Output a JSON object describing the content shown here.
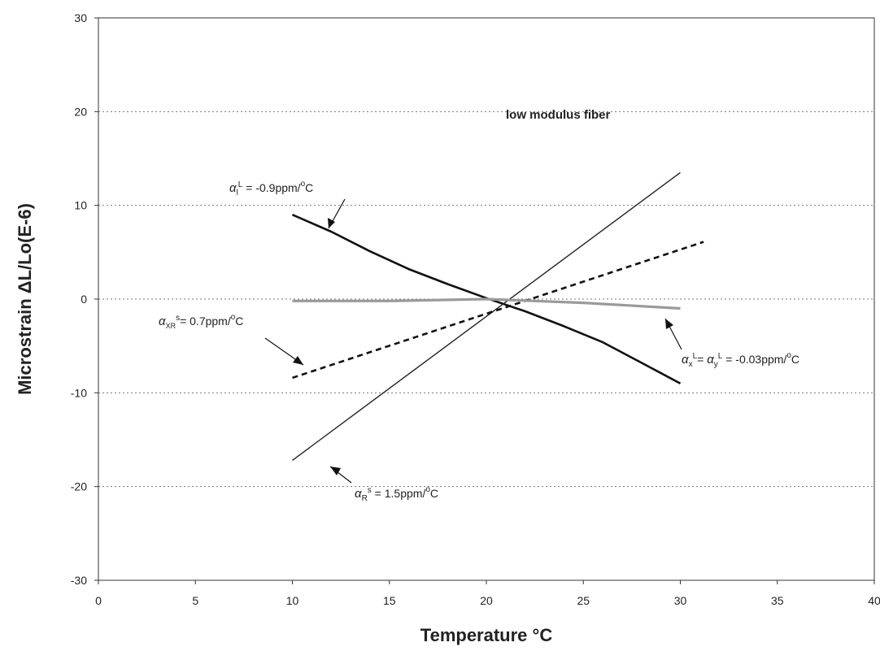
{
  "chart_data": {
    "type": "line",
    "xlabel": "Temperature °C",
    "ylabel": "Microstrain ΔL/Lo(E-6)",
    "xlim": [
      0,
      40
    ],
    "ylim": [
      -30,
      30
    ],
    "x_ticks": [
      "0",
      "5",
      "10",
      "15",
      "20",
      "25",
      "30",
      "35",
      "40"
    ],
    "y_ticks": [
      "-30",
      "-20",
      "-10",
      "0",
      "10",
      "20",
      "30"
    ],
    "grid": "dotted horizontal",
    "label": "low modulus fiber",
    "series": [
      {
        "x": [
          10,
          12,
          14,
          16,
          18,
          20,
          22,
          24,
          26,
          28,
          30
        ],
        "y": [
          9,
          7.2,
          5.1,
          3.2,
          1.6,
          0.1,
          -1.3,
          -2.9,
          -4.6,
          -6.8,
          -9
        ],
        "color": "#111111",
        "style": "solid-thick"
      },
      {
        "x": [
          10,
          30
        ],
        "y": [
          -17.2,
          13.5
        ],
        "color": "#222222",
        "style": "solid-thin"
      },
      {
        "x": [
          10,
          31.2
        ],
        "y": [
          -8.4,
          6.1
        ],
        "color": "#111111",
        "style": "dashed"
      },
      {
        "x": [
          10,
          15,
          20,
          25,
          30
        ],
        "y": [
          -0.2,
          -0.2,
          0,
          -0.4,
          -1
        ],
        "color": "#9a9a9a",
        "style": "solid-gray"
      }
    ],
    "annotations": [
      {
        "text": "αl L = -0.9ppm/°C"
      },
      {
        "text": "αxR s= 0.7ppm/°C"
      },
      {
        "text": "αx L= αy L = -0.03ppm/°C"
      },
      {
        "text": "αR s = 1.5ppm/°C"
      }
    ]
  }
}
